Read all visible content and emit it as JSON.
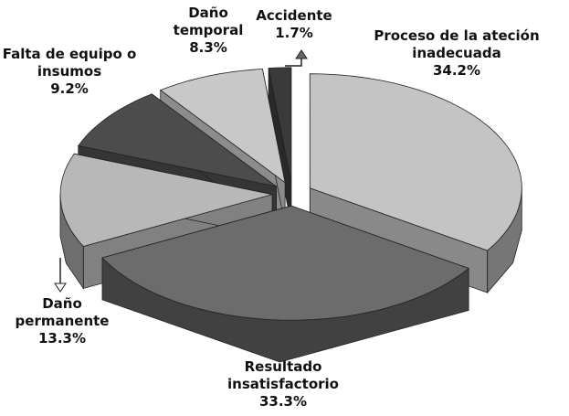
{
  "chart_data": {
    "type": "pie3d",
    "categories": [
      "Proceso de la ateción inadecuada",
      "Resultado insatisfactorio",
      "Daño permanente",
      "Falta de equipo o insumos",
      "Daño temporal",
      "Accidente"
    ],
    "values": [
      34.2,
      33.3,
      13.3,
      9.2,
      8.3,
      1.7
    ],
    "value_labels": [
      "34.2%",
      "33.3%",
      "13.3%",
      "9.2%",
      "8.3%",
      "1.7%"
    ],
    "colors": [
      "#c4c4c4",
      "#6c6c6c",
      "#b8b8b8",
      "#4c4c4c",
      "#c8c8c8",
      "#3a3a3a"
    ]
  }
}
